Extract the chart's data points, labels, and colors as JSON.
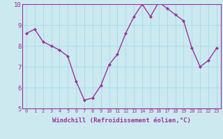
{
  "x": [
    0,
    1,
    2,
    3,
    4,
    5,
    6,
    7,
    8,
    9,
    10,
    11,
    12,
    13,
    14,
    15,
    16,
    17,
    18,
    19,
    20,
    21,
    22,
    23
  ],
  "y": [
    8.6,
    8.8,
    8.2,
    8.0,
    7.8,
    7.5,
    6.3,
    5.4,
    5.5,
    6.1,
    7.1,
    7.6,
    8.6,
    9.4,
    10.0,
    9.4,
    10.1,
    9.8,
    9.5,
    9.2,
    7.9,
    7.0,
    7.3,
    7.9
  ],
  "line_color": "#993399",
  "marker": "D",
  "marker_size": 2.0,
  "line_width": 1.0,
  "bg_color": "#cce9f0",
  "grid_color": "#aaddee",
  "xlabel": "Windchill (Refroidissement éolien,°C)",
  "xlabel_color": "#993399",
  "tick_color": "#993399",
  "label_color": "#993399",
  "ylim": [
    5,
    10
  ],
  "xlim": [
    -0.5,
    23.5
  ],
  "yticks": [
    5,
    6,
    7,
    8,
    9,
    10
  ],
  "xticks": [
    0,
    1,
    2,
    3,
    4,
    5,
    6,
    7,
    8,
    9,
    10,
    11,
    12,
    13,
    14,
    15,
    16,
    17,
    18,
    19,
    20,
    21,
    22,
    23
  ],
  "xtick_labels": [
    "0",
    "1",
    "2",
    "3",
    "4",
    "5",
    "6",
    "7",
    "8",
    "9",
    "10",
    "11",
    "12",
    "13",
    "14",
    "15",
    "16",
    "17",
    "18",
    "19",
    "20",
    "21",
    "22",
    "23"
  ],
  "xtick_fontsize": 5.0,
  "ytick_fontsize": 6.5,
  "xlabel_fontsize": 6.5
}
